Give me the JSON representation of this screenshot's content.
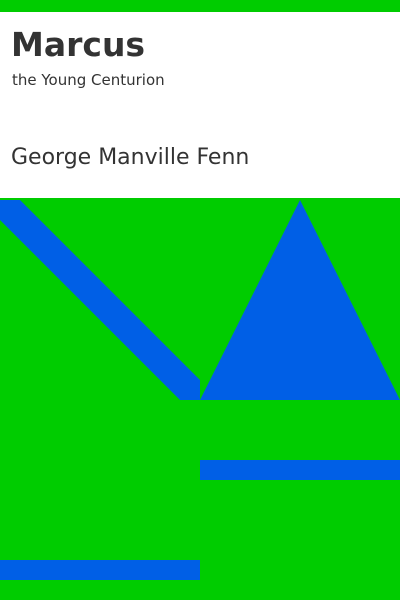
{
  "book": {
    "title": "Marcus",
    "subtitle": "the Young Centurion",
    "author": "George Manville Fenn"
  },
  "colors": {
    "background": "#00cc00",
    "panel": "#ffffff",
    "shapes": "#005fe6",
    "text": "#333333"
  }
}
